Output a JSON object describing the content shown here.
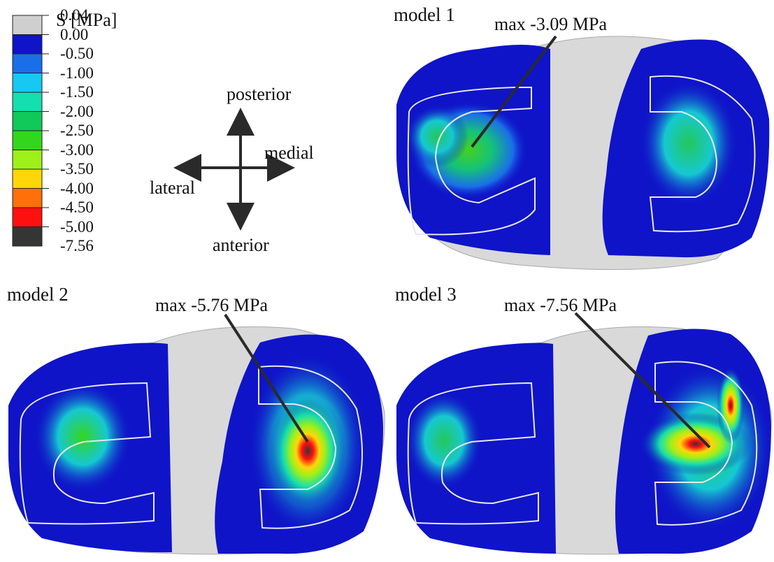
{
  "legend": {
    "title": "S [MPa]",
    "entries": [
      {
        "label": "0.04",
        "color": "#cfcfcf"
      },
      {
        "label": "0.00",
        "color": "#0f14c8"
      },
      {
        "label": "-0.50",
        "color": "#1a6fe8"
      },
      {
        "label": "-1.00",
        "color": "#16c8f2"
      },
      {
        "label": "-1.50",
        "color": "#14dfae"
      },
      {
        "label": "-2.00",
        "color": "#11c85a"
      },
      {
        "label": "-2.50",
        "color": "#33d61e"
      },
      {
        "label": "-3.00",
        "color": "#9ef019"
      },
      {
        "label": "-3.50",
        "color": "#ffd60a"
      },
      {
        "label": "-4.00",
        "color": "#ff6f0a"
      },
      {
        "label": "-4.50",
        "color": "#ff1010"
      },
      {
        "label": "-5.00",
        "color": "#353535"
      }
    ],
    "last_label": "-7.56"
  },
  "orientation": {
    "posterior": "posterior",
    "anterior": "anterior",
    "lateral": "lateral",
    "medial": "medial"
  },
  "models": [
    {
      "title": "model 1",
      "max_label": "max -3.09 MPa",
      "max_value": -3.09
    },
    {
      "title": "model 2",
      "max_label": "max -5.76 MPa",
      "max_value": -5.76
    },
    {
      "title": "model 3",
      "max_label": "max -7.56 MPa",
      "max_value": -7.56
    }
  ],
  "colors": {
    "background": "#ffffff",
    "grey_bone": "#d9d9d9",
    "blue_base": "#0f14c8",
    "outline": "#e8e8e8",
    "arrow": "#2a2a2a"
  }
}
